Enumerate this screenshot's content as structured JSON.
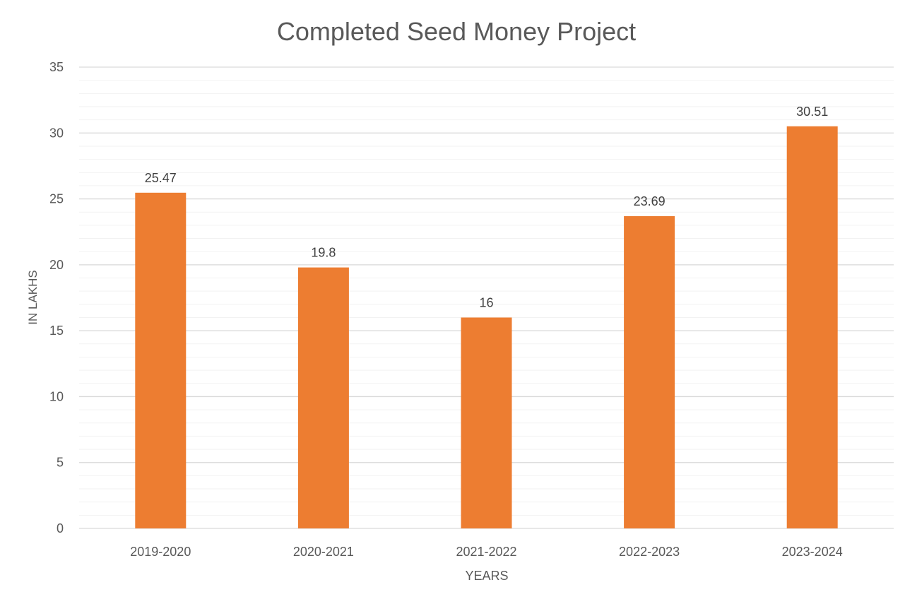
{
  "chart_data": {
    "type": "bar",
    "title": "Completed Seed Money Project",
    "xlabel": "YEARS",
    "ylabel": "IN LAKHS",
    "categories": [
      "2019-2020",
      "2020-2021",
      "2021-2022",
      "2022-2023",
      "2023-2024"
    ],
    "values": [
      25.47,
      19.8,
      16,
      23.69,
      30.51
    ],
    "data_labels": [
      "25.47",
      "19.8",
      "16",
      "23.69",
      "30.51"
    ],
    "ylim": [
      0,
      35
    ],
    "yticks": [
      0,
      5,
      10,
      15,
      20,
      25,
      30,
      35
    ],
    "minor_tick_step": 1,
    "grid": true,
    "legend": "none",
    "colors": {
      "bar": "#ED7D31",
      "major_grid": "#D9D9D9",
      "minor_grid": "#F2F2F2",
      "text": "#595959"
    }
  }
}
